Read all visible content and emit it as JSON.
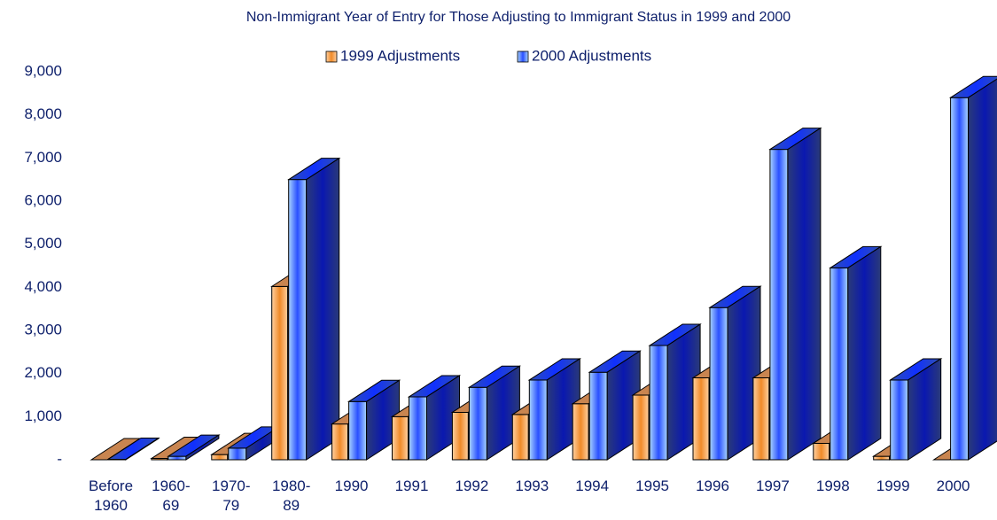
{
  "chart_data": {
    "type": "bar3d",
    "title": "Non-Immigrant Year of Entry for Those Adjusting to Immigrant Status in 1999 and 2000",
    "categories": [
      "Before 1960",
      "1960-69",
      "1970-79",
      "1980-89",
      "1990",
      "1991",
      "1992",
      "1993",
      "1994",
      "1995",
      "1996",
      "1997",
      "1998",
      "1999",
      "2000"
    ],
    "series": [
      {
        "name": "1999 Adjustments",
        "color": "#f5a050",
        "values": [
          0,
          30,
          120,
          4020,
          830,
          1000,
          1100,
          1050,
          1300,
          1500,
          1900,
          1900,
          380,
          80,
          0
        ]
      },
      {
        "name": "2000 Adjustments",
        "color": "#99ccff",
        "values": [
          10,
          80,
          270,
          6500,
          1350,
          1460,
          1680,
          1850,
          2030,
          2650,
          3530,
          7200,
          4450,
          1850,
          8400
        ]
      }
    ],
    "ylim": [
      0,
      9000
    ],
    "yticks": [
      {
        "value": 0,
        "label": "-"
      },
      {
        "value": 1000,
        "label": "1,000"
      },
      {
        "value": 2000,
        "label": "2,000"
      },
      {
        "value": 3000,
        "label": "3,000"
      },
      {
        "value": 4000,
        "label": "4,000"
      },
      {
        "value": 5000,
        "label": "5,000"
      },
      {
        "value": 6000,
        "label": "6,000"
      },
      {
        "value": 7000,
        "label": "7,000"
      },
      {
        "value": 8000,
        "label": "8,000"
      },
      {
        "value": 9000,
        "label": "9,000"
      }
    ]
  }
}
